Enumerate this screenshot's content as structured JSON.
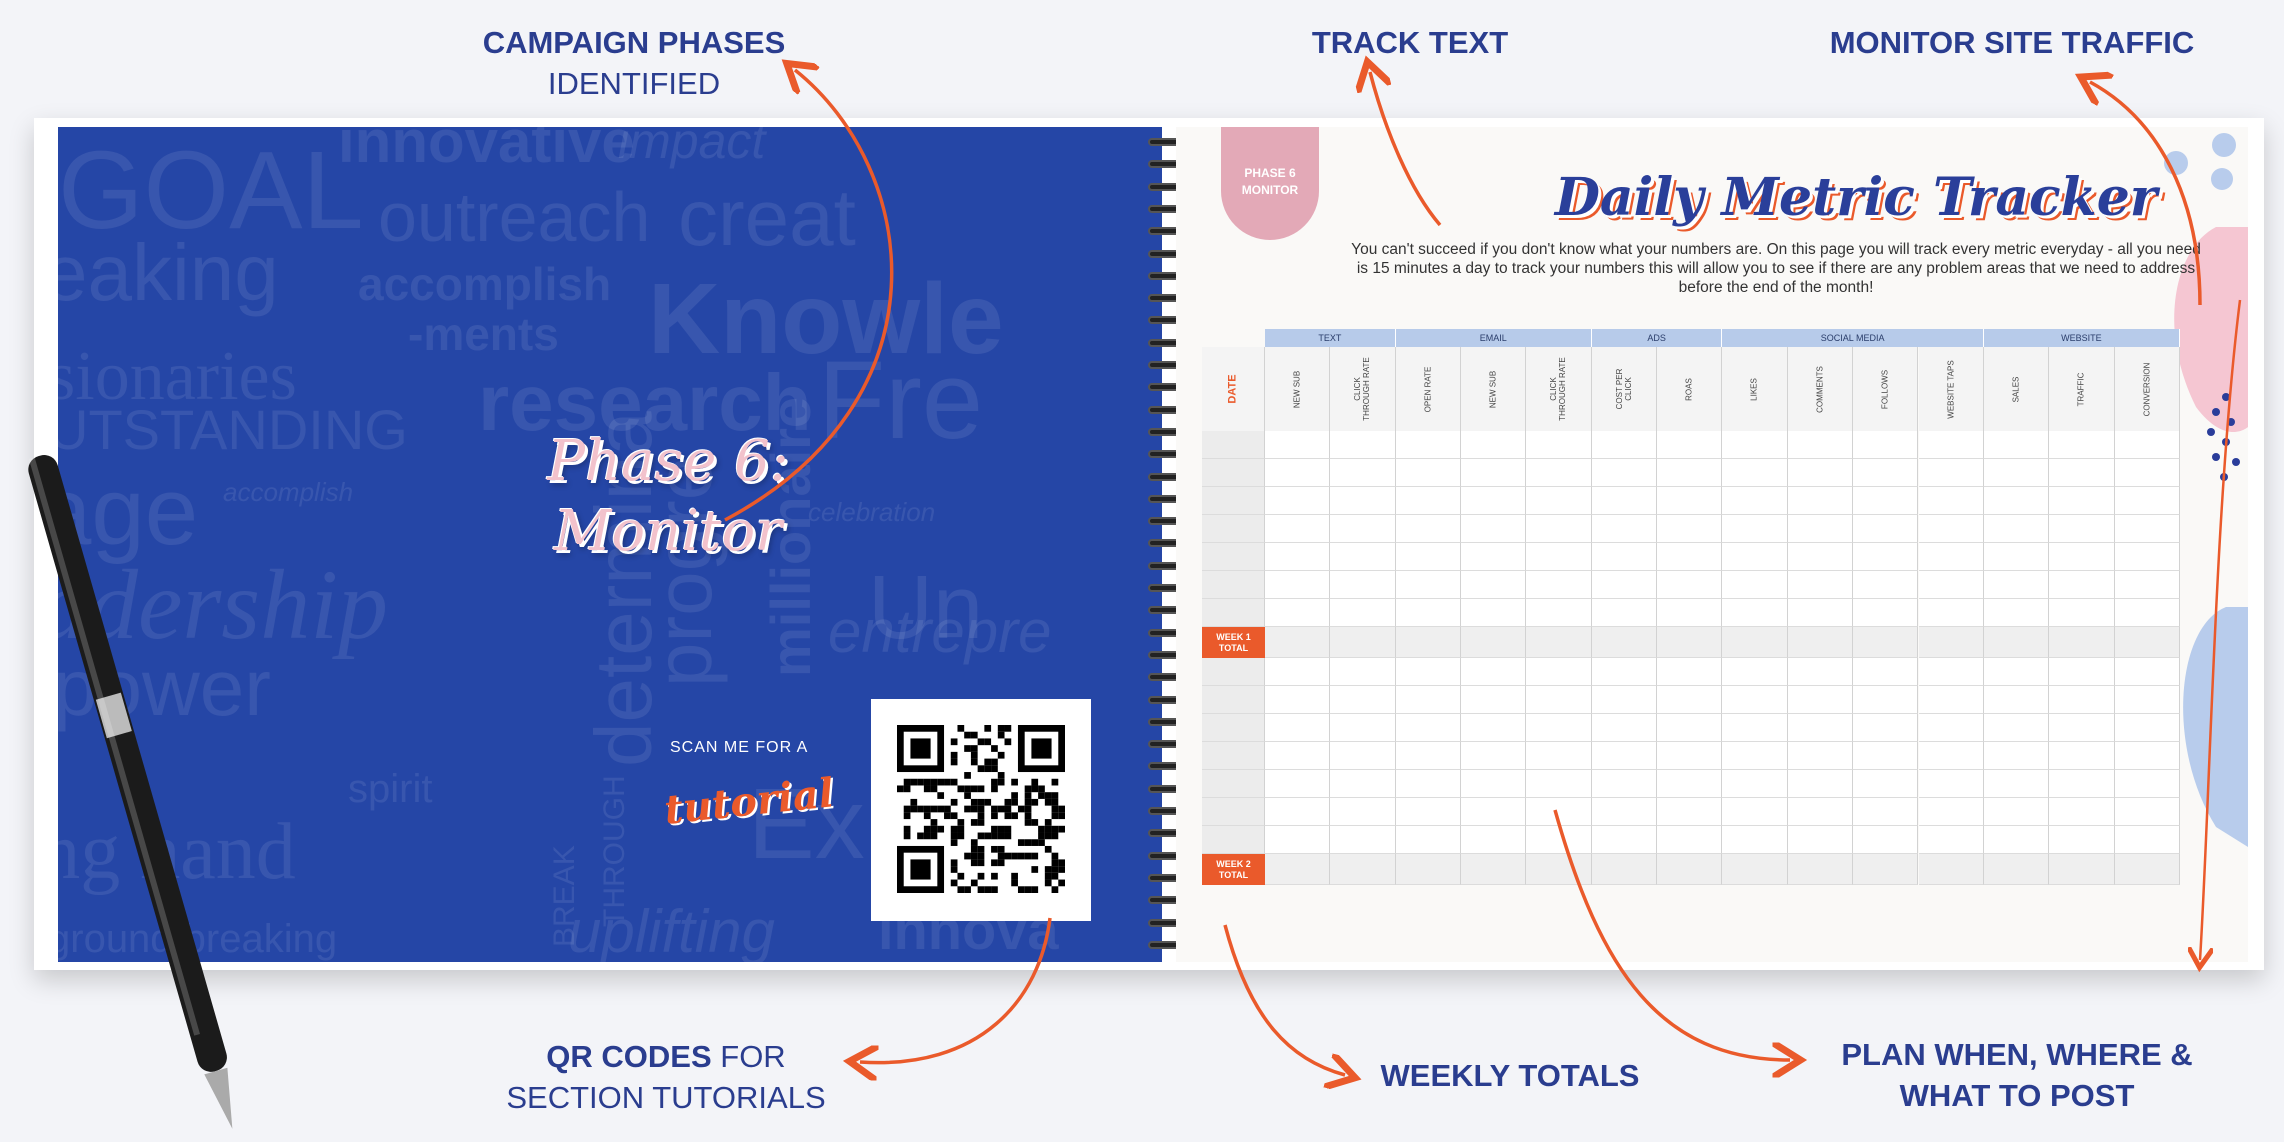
{
  "callouts": {
    "campaign_phases": {
      "bold": "CAMPAIGN PHASES",
      "light": "IDENTIFIED"
    },
    "track_text": "TRACK TEXT",
    "monitor_traffic": "MONITOR SITE TRAFFIC",
    "qr_codes": {
      "bold": "QR CODES",
      "light1": " FOR",
      "light2": "SECTION TUTORIALS"
    },
    "weekly_totals": "WEEKLY TOTALS",
    "plan_post": {
      "line1": "PLAN WHEN, WHERE &",
      "line2": "WHAT TO POST"
    }
  },
  "left_page": {
    "background_words": [
      "GOAL",
      "innovative",
      "impact",
      "outreach",
      "creat",
      "eaking",
      "accomplish",
      "-ments",
      "Knowle",
      "sionaries",
      "research",
      "Fre",
      "UTSTANDING",
      "age",
      "accomplish",
      "celebration",
      "adership",
      "progre",
      "millionaire",
      "determina",
      "Un",
      "entrepre",
      "power",
      "BREAK",
      "THROUGH",
      "spirit",
      "ing hand",
      "Ex",
      "ground breaking",
      "uplifting",
      "innova"
    ],
    "phase_title": [
      "Phase 6:",
      "Monitor"
    ],
    "scan_label": "SCAN ME FOR A",
    "tutorial_label": "tutorial"
  },
  "right_page": {
    "tab": [
      "PHASE 6",
      "MONITOR"
    ],
    "title": "Daily Metric Tracker",
    "description": "You can't succeed if you don't know what your numbers are. On this page you will track every metric everyday - all you need is 15 minutes a day to track your numbers this will allow you to see if there are any problem areas that we need to address before the end of the month!",
    "table": {
      "date_label": "DATE",
      "groups": [
        {
          "label": "TEXT",
          "columns": [
            "NEW SUB",
            "CLICK THROUGH RATE"
          ]
        },
        {
          "label": "EMAIL",
          "columns": [
            "OPEN RATE",
            "NEW SUB",
            "CLICK THROUGH RATE"
          ]
        },
        {
          "label": "ADS",
          "columns": [
            "COST PER CLICK",
            "ROAS"
          ]
        },
        {
          "label": "SOCIAL MEDIA",
          "columns": [
            "LIKES",
            "COMMENTS",
            "FOLLOWS",
            "WEBSITE TAPS"
          ]
        },
        {
          "label": "WEBSITE",
          "columns": [
            "SALES",
            "TRAFFIC",
            "CONVERSION"
          ]
        }
      ],
      "weeks": [
        {
          "total_label": [
            "WEEK 1",
            "TOTAL"
          ],
          "day_rows": 7
        },
        {
          "total_label": [
            "WEEK 2",
            "TOTAL"
          ],
          "day_rows": 7
        }
      ]
    }
  },
  "colors": {
    "navy": "#2a3d8f",
    "page_blue": "#2546a6",
    "orange": "#ea5a2b",
    "pink": "#e3a9b7",
    "header_blue": "#b7cbea"
  }
}
